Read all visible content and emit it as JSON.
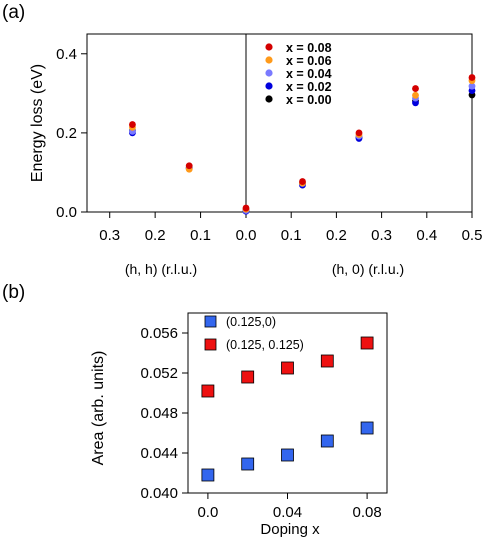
{
  "panel_labels": {
    "a": "(a)",
    "b": "(b)"
  },
  "colors": {
    "x_0.08": "#d40000",
    "x_0.06": "#ff9a1a",
    "x_0.04": "#7a7aff",
    "x_0.02": "#0000dd",
    "x_0.00": "#000000",
    "square_blue": "#3366ee",
    "square_red": "#ee1111"
  },
  "chart_data": [
    {
      "type": "scatter",
      "panel": "(a)",
      "ylabel": "Energy loss (eV)",
      "ylim": [
        0,
        0.45
      ],
      "yticks": [
        "0.0",
        "0.2",
        "0.4"
      ],
      "x_segments": [
        {
          "xlabel": "(h, h) (r.l.u.)",
          "xlim": [
            0.35,
            0.0
          ],
          "ticks": [
            "0.3",
            "0.2",
            "0.1",
            "0.0"
          ]
        },
        {
          "xlabel": "(h, 0) (r.l.u.)",
          "xlim": [
            0.0,
            0.5
          ],
          "ticks": [
            "0.1",
            "0.2",
            "0.3",
            "0.4",
            "0.5"
          ]
        }
      ],
      "legend_position": "top-right",
      "series": [
        {
          "name": "x = 0.08",
          "hh": [
            [
              0.25,
              0.221
            ],
            [
              0.125,
              0.117
            ],
            [
              0.0,
              0.01
            ]
          ],
          "h0": [
            [
              0.125,
              0.077
            ],
            [
              0.25,
              0.2
            ],
            [
              0.375,
              0.312
            ],
            [
              0.5,
              0.34
            ]
          ]
        },
        {
          "name": "x = 0.06",
          "hh": [
            [
              0.25,
              0.214
            ],
            [
              0.125,
              0.108
            ],
            [
              0.0,
              0.007
            ]
          ],
          "h0": [
            [
              0.125,
              0.073
            ],
            [
              0.25,
              0.196
            ],
            [
              0.375,
              0.295
            ],
            [
              0.5,
              0.332
            ]
          ]
        },
        {
          "name": "x = 0.04",
          "hh": [
            [
              0.25,
              0.204
            ],
            [
              0.125,
              0.11
            ],
            [
              0.0,
              0.004
            ]
          ],
          "h0": [
            [
              0.125,
              0.072
            ],
            [
              0.25,
              0.192
            ],
            [
              0.375,
              0.288
            ],
            [
              0.5,
              0.318
            ]
          ]
        },
        {
          "name": "x = 0.02",
          "hh": [
            [
              0.25,
              0.2
            ],
            [
              0.125,
              0.11
            ],
            [
              0.0,
              0.002
            ]
          ],
          "h0": [
            [
              0.125,
              0.068
            ],
            [
              0.25,
              0.186
            ],
            [
              0.375,
              0.276
            ],
            [
              0.5,
              0.307
            ]
          ]
        },
        {
          "name": "x = 0.00",
          "hh": [
            [
              0.25,
              0.206
            ],
            [
              0.125,
              0.112
            ],
            [
              0.0,
              0.005
            ]
          ],
          "h0": [
            [
              0.125,
              0.072
            ],
            [
              0.25,
              0.189
            ],
            [
              0.375,
              0.281
            ],
            [
              0.5,
              0.296
            ]
          ]
        }
      ]
    },
    {
      "type": "scatter",
      "panel": "(b)",
      "xlabel": "Doping x",
      "ylabel": "Area (arb. units)",
      "xlim": [
        -0.01,
        0.09
      ],
      "ylim": [
        0.04,
        0.058
      ],
      "xticks": [
        "0.0",
        "0.04",
        "0.08"
      ],
      "yticks": [
        "0.040",
        "0.044",
        "0.048",
        "0.052",
        "0.056"
      ],
      "legend_position": "top-left",
      "series": [
        {
          "name": "(0.125,0)",
          "x": [
            0.0,
            0.02,
            0.04,
            0.06,
            0.08
          ],
          "y": [
            0.0418,
            0.0429,
            0.0438,
            0.0452,
            0.0465
          ]
        },
        {
          "name": "(0.125, 0.125)",
          "x": [
            0.0,
            0.02,
            0.04,
            0.06,
            0.08
          ],
          "y": [
            0.0502,
            0.0516,
            0.0525,
            0.0532,
            0.055
          ]
        }
      ]
    }
  ]
}
